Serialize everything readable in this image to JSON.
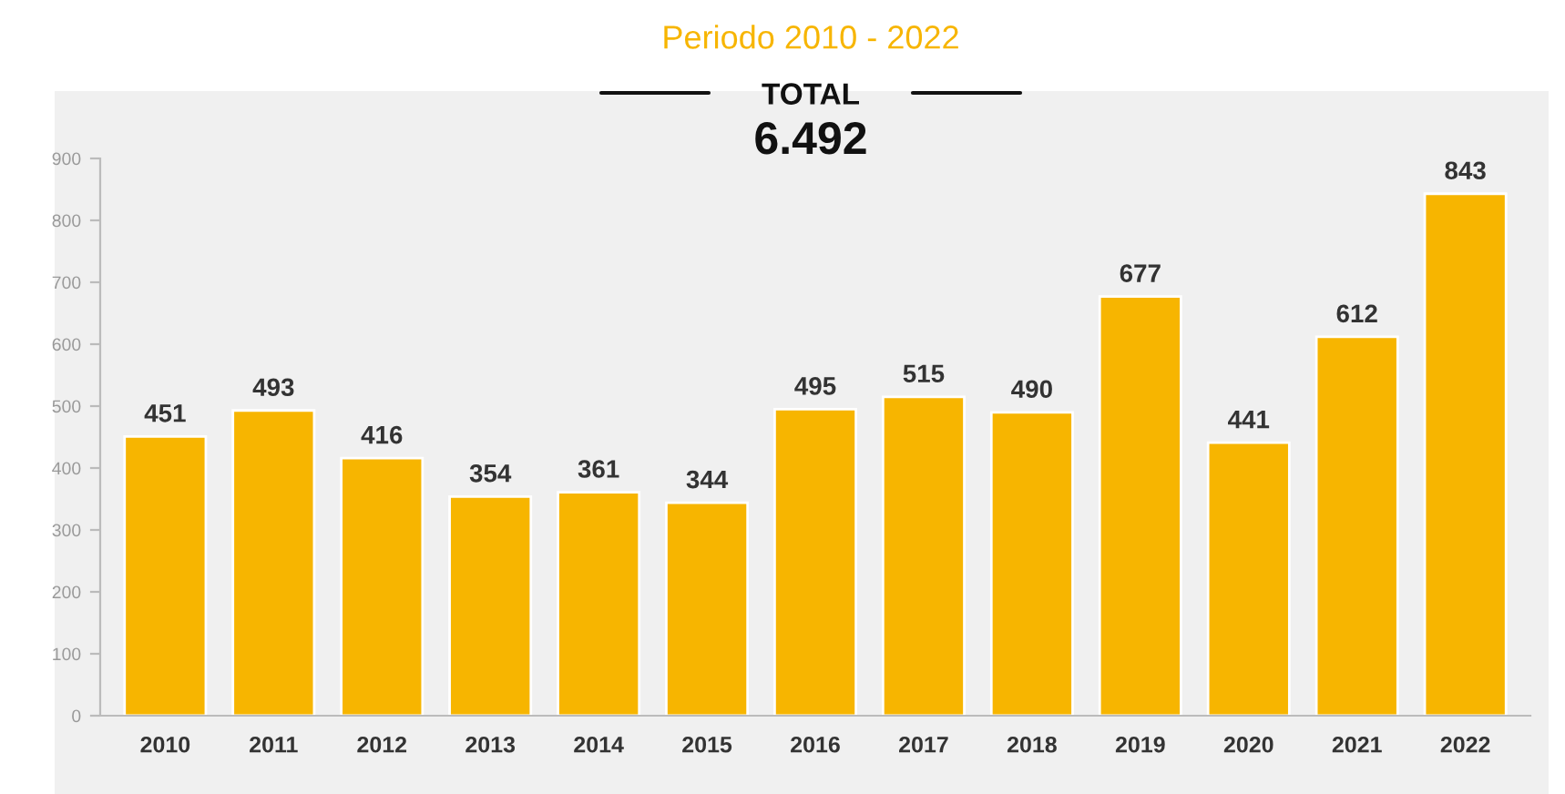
{
  "chart_data": {
    "type": "bar",
    "title": "Periodo 2010 - 2022",
    "annotations": [
      "TOTAL",
      "6.492"
    ],
    "categories": [
      "2010",
      "2011",
      "2012",
      "2013",
      "2014",
      "2015",
      "2016",
      "2017",
      "2018",
      "2019",
      "2020",
      "2021",
      "2022"
    ],
    "values": [
      451,
      493,
      416,
      354,
      361,
      344,
      495,
      515,
      490,
      677,
      441,
      612,
      843
    ],
    "color": "#f7b500",
    "ylim": [
      0,
      900
    ],
    "yticks": [
      0,
      100,
      200,
      300,
      400,
      500,
      600,
      700,
      800,
      900
    ],
    "data_labels": true
  }
}
